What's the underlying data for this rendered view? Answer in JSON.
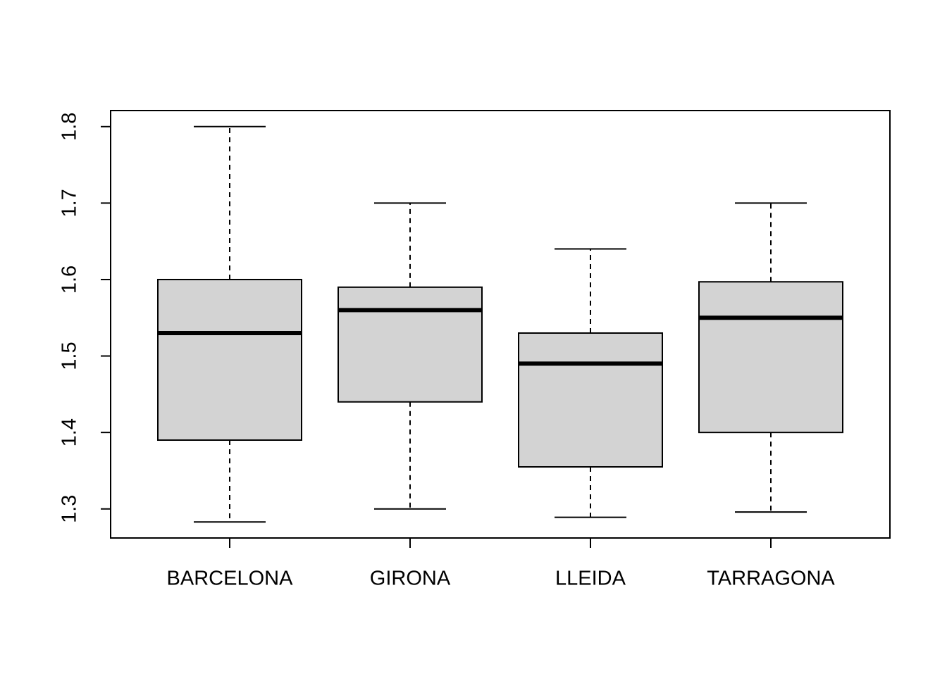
{
  "chart_data": {
    "type": "boxplot",
    "categories": [
      "BARCELONA",
      "GIRONA",
      "LLEIDA",
      "TARRAGONA"
    ],
    "boxes": [
      {
        "min": 1.283,
        "q1": 1.39,
        "median": 1.53,
        "q3": 1.6,
        "max": 1.8
      },
      {
        "min": 1.3,
        "q1": 1.44,
        "median": 1.56,
        "q3": 1.59,
        "max": 1.7
      },
      {
        "min": 1.289,
        "q1": 1.355,
        "median": 1.49,
        "q3": 1.53,
        "max": 1.64
      },
      {
        "min": 1.296,
        "q1": 1.4,
        "median": 1.55,
        "q3": 1.597,
        "max": 1.7
      }
    ],
    "color": "#d3d3d3",
    "ylim": [
      1.262,
      1.821
    ],
    "yticks": [
      1.3,
      1.4,
      1.5,
      1.6,
      1.7,
      1.8
    ]
  }
}
